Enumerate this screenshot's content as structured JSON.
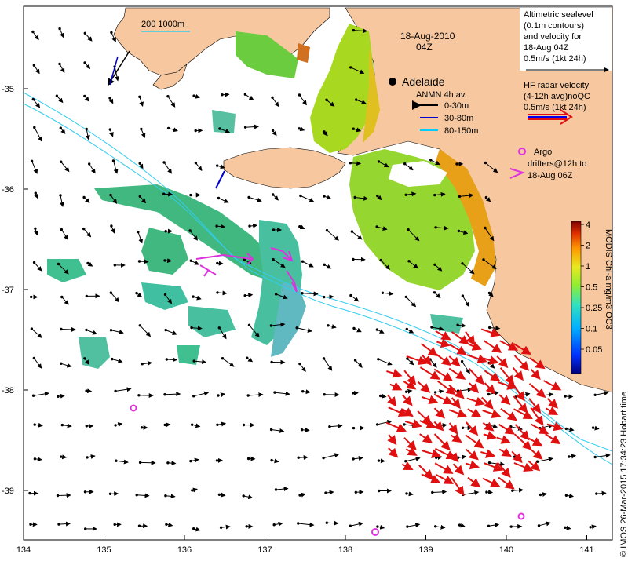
{
  "map": {
    "date_line1": "18-Aug-2010",
    "date_line2": "04Z",
    "place_label": "Adelaide",
    "scale_bar_label": "200  1000m"
  },
  "axes": {
    "x_ticks": [
      "134",
      "135",
      "136",
      "137",
      "138",
      "139",
      "140",
      "141"
    ],
    "y_ticks": [
      "-35",
      "-36",
      "-37",
      "-38",
      "-39"
    ]
  },
  "legend_altimetry": {
    "lines": [
      "Altimetric sealevel",
      "(0.1m contours)",
      "and velocity for",
      "18-Aug 04Z",
      "0.5m/s (1kt 24h)"
    ]
  },
  "legend_radar": {
    "lines": [
      "HF radar velocity",
      "(4-12h avg)noQC",
      "0.5m/s (1kt 24h)"
    ]
  },
  "legend_anmn": {
    "title": "ANMN 4h av.",
    "items": [
      {
        "label": "0-30m",
        "color": "#000000"
      },
      {
        "label": "30-80m",
        "color": "#0000cc"
      },
      {
        "label": "80-150m",
        "color": "#00ccff"
      }
    ]
  },
  "legend_argo": {
    "line1": "Argo",
    "line2": "drifters@12h to",
    "line3": "18-Aug 06Z"
  },
  "colorbar": {
    "title": "MODIS Chl-a mg/m3 OC3",
    "ticks": [
      "4",
      "2",
      "1",
      "0.5",
      "0.25",
      "0.1",
      "0.05"
    ]
  },
  "credit": "© IMOS 26-Mar-2015 17:34:23 Hobart time",
  "colors": {
    "land": "#f7c8a0",
    "shelf_contour": "#33ccee",
    "radar": "#e01010",
    "argo": "#dd33dd",
    "vector": "#000000"
  }
}
